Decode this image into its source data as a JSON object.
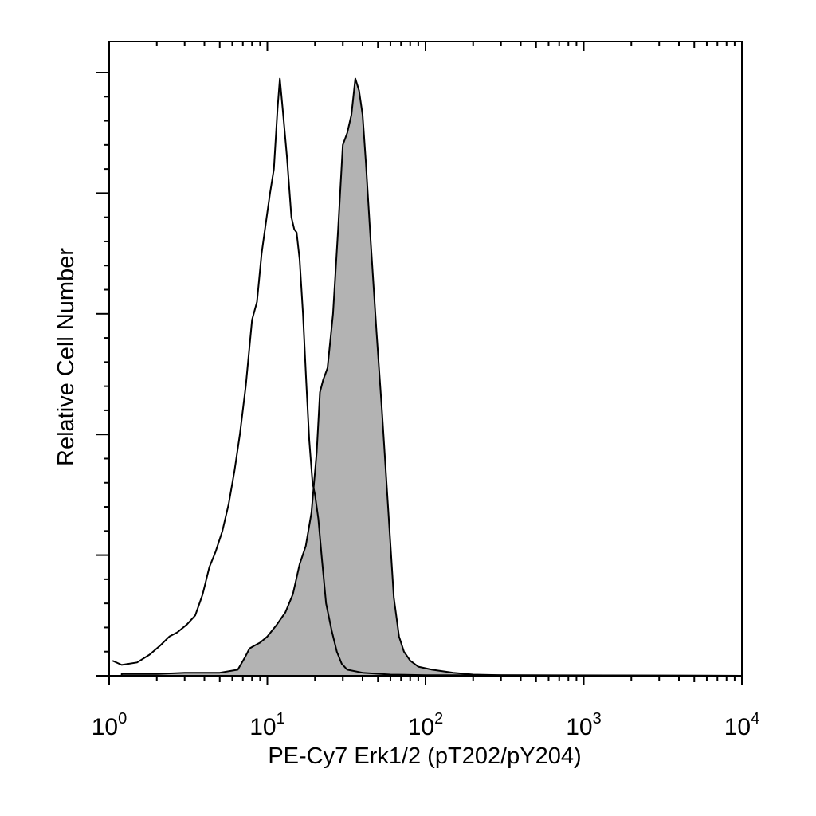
{
  "chart_data": {
    "type": "area",
    "title": "",
    "xlabel": "PE-Cy7 Erk1/2 (pT202/pY204)",
    "ylabel": "Relative Cell Number",
    "x_scale": "log",
    "xlim": [
      1,
      10000
    ],
    "ylim": [
      0,
      100
    ],
    "x_ticks": [
      {
        "base": "10",
        "exp": "0",
        "value": 1
      },
      {
        "base": "10",
        "exp": "1",
        "value": 10
      },
      {
        "base": "10",
        "exp": "2",
        "value": 100
      },
      {
        "base": "10",
        "exp": "3",
        "value": 1000
      },
      {
        "base": "10",
        "exp": "4",
        "value": 10000
      }
    ],
    "y_major_ticks": [
      0,
      20,
      40,
      60,
      80,
      100
    ],
    "grid": false,
    "legend": "none",
    "series": [
      {
        "style": "outline",
        "fill": "none",
        "stroke": "#000000",
        "points": [
          [
            1.05,
            2.5
          ],
          [
            1.2,
            1.8
          ],
          [
            1.5,
            2.2
          ],
          [
            1.8,
            3.5
          ],
          [
            2.1,
            5
          ],
          [
            2.4,
            6.5
          ],
          [
            2.7,
            7.2
          ],
          [
            3.1,
            8.5
          ],
          [
            3.5,
            10
          ],
          [
            3.9,
            13.5
          ],
          [
            4.3,
            18
          ],
          [
            4.7,
            20.5
          ],
          [
            5.2,
            24
          ],
          [
            5.7,
            28.5
          ],
          [
            6.2,
            34
          ],
          [
            6.7,
            40
          ],
          [
            7.3,
            48
          ],
          [
            8.0,
            59
          ],
          [
            8.6,
            62
          ],
          [
            9.2,
            70
          ],
          [
            9.9,
            76
          ],
          [
            10.4,
            80
          ],
          [
            11.0,
            84
          ],
          [
            11.6,
            94
          ],
          [
            12.0,
            99
          ],
          [
            12.5,
            94
          ],
          [
            13.3,
            86
          ],
          [
            14.2,
            76
          ],
          [
            14.8,
            74
          ],
          [
            15.3,
            73.5
          ],
          [
            16.0,
            69
          ],
          [
            16.8,
            60
          ],
          [
            17.6,
            49
          ],
          [
            18.4,
            39
          ],
          [
            19.3,
            32
          ],
          [
            20.0,
            30
          ],
          [
            21.0,
            26
          ],
          [
            22.0,
            20
          ],
          [
            23.5,
            12
          ],
          [
            25.5,
            7.5
          ],
          [
            27.5,
            4
          ],
          [
            29.5,
            2
          ],
          [
            32.0,
            1
          ],
          [
            40.0,
            0.5
          ],
          [
            60.0,
            0.2
          ],
          [
            100,
            0.1
          ],
          [
            10000,
            0
          ]
        ]
      },
      {
        "style": "filled",
        "fill": "#b3b3b3",
        "stroke": "#000000",
        "points": [
          [
            1.2,
            0.3
          ],
          [
            2.0,
            0.3
          ],
          [
            3.0,
            0.5
          ],
          [
            5.0,
            0.5
          ],
          [
            6.5,
            1.0
          ],
          [
            7.2,
            3.0
          ],
          [
            7.7,
            4.5
          ],
          [
            8.3,
            5.0
          ],
          [
            9.0,
            5.5
          ],
          [
            10.0,
            6.5
          ],
          [
            11.5,
            8.5
          ],
          [
            13.0,
            10.5
          ],
          [
            14.5,
            13.5
          ],
          [
            16.0,
            18.5
          ],
          [
            17.5,
            21.5
          ],
          [
            19.0,
            27
          ],
          [
            20.5,
            37
          ],
          [
            21.5,
            47
          ],
          [
            22.5,
            49
          ],
          [
            24.0,
            51
          ],
          [
            26.0,
            60
          ],
          [
            28.0,
            74
          ],
          [
            30.0,
            88
          ],
          [
            32.0,
            90
          ],
          [
            34.0,
            93
          ],
          [
            36.0,
            99
          ],
          [
            38.0,
            97
          ],
          [
            40.0,
            93
          ],
          [
            42.0,
            85
          ],
          [
            45.0,
            72
          ],
          [
            49.0,
            57
          ],
          [
            53.0,
            44
          ],
          [
            58.0,
            28
          ],
          [
            63.0,
            13
          ],
          [
            68.0,
            6.5
          ],
          [
            73.0,
            4
          ],
          [
            80.0,
            2.5
          ],
          [
            90.0,
            1.5
          ],
          [
            110.0,
            1.0
          ],
          [
            150.0,
            0.5
          ],
          [
            200.0,
            0.2
          ],
          [
            300.0,
            0.1
          ],
          [
            10000,
            0
          ]
        ]
      }
    ]
  }
}
